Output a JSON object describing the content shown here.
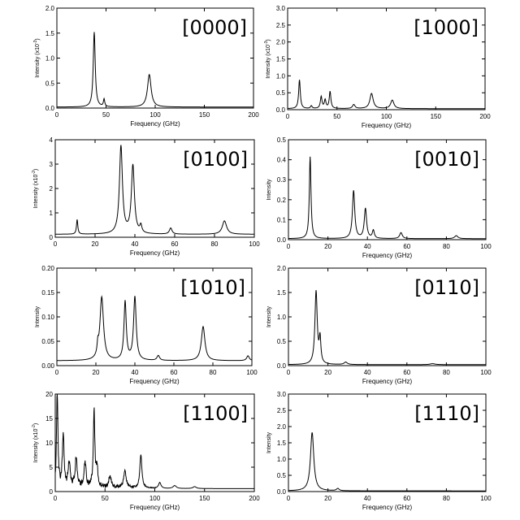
{
  "chart_data": [
    {
      "type": "line",
      "panel_label": "[0000]",
      "xlabel": "Frequency (GHz)",
      "ylabel": "Intensity (x10",
      "ylabel_exp": "-3",
      "ylabel_suffix": ")",
      "xlim": [
        0,
        200
      ],
      "ylim": [
        0,
        2.0
      ],
      "xticks": [
        0,
        50,
        100,
        150,
        200
      ],
      "yticks": [
        "0.0",
        "0.5",
        "1.0",
        "1.5",
        "2.0"
      ],
      "baseline": 0.02,
      "peaks": [
        [
          38,
          1.5,
          1.2
        ],
        [
          48,
          0.15,
          0.8
        ],
        [
          94,
          0.65,
          2.2
        ]
      ],
      "noise": 0
    },
    {
      "type": "line",
      "panel_label": "[1000]",
      "xlabel": "Frequency (GHz)",
      "ylabel": "Intensity (x10",
      "ylabel_exp": "-3",
      "ylabel_suffix": ")",
      "xlim": [
        0,
        200
      ],
      "ylim": [
        0,
        3.0
      ],
      "xticks": [
        0,
        50,
        100,
        150,
        200
      ],
      "yticks": [
        "0.0",
        "0.5",
        "1.0",
        "1.5",
        "2.0",
        "2.5",
        "3.0"
      ],
      "baseline": 0.03,
      "peaks": [
        [
          12,
          0.85,
          1.0
        ],
        [
          24,
          0.08,
          1.0
        ],
        [
          34,
          0.35,
          1.0
        ],
        [
          38,
          0.25,
          1.0
        ],
        [
          43,
          0.5,
          1.0
        ],
        [
          67,
          0.12,
          1.5
        ],
        [
          85,
          0.45,
          2.0
        ],
        [
          106,
          0.25,
          2.0
        ]
      ],
      "noise": 0
    },
    {
      "type": "line",
      "panel_label": "[0100]",
      "xlabel": "Frequency (GHz)",
      "ylabel": "Intensity (x10",
      "ylabel_exp": "-2",
      "ylabel_suffix": ")",
      "xlim": [
        0,
        100
      ],
      "ylim": [
        0,
        4
      ],
      "xticks": [
        0,
        20,
        40,
        60,
        80,
        100
      ],
      "yticks": [
        "0",
        "1",
        "2",
        "3",
        "4"
      ],
      "baseline": 0.12,
      "peaks": [
        [
          11,
          0.6,
          0.4
        ],
        [
          33,
          3.6,
          0.9
        ],
        [
          39,
          2.8,
          0.9
        ],
        [
          43,
          0.3,
          0.6
        ],
        [
          58,
          0.25,
          0.8
        ],
        [
          85,
          0.55,
          1.3
        ]
      ],
      "noise": 0
    },
    {
      "type": "line",
      "panel_label": "[0010]",
      "xlabel": "Frequency (GHz)",
      "ylabel": "Intensity",
      "ylabel_exp": "",
      "ylabel_suffix": "",
      "xlim": [
        0,
        100
      ],
      "ylim": [
        0,
        0.5
      ],
      "xticks": [
        0,
        20,
        40,
        60,
        80,
        100
      ],
      "yticks": [
        "0.0",
        "0.1",
        "0.2",
        "0.3",
        "0.4",
        "0.5"
      ],
      "baseline": 0.005,
      "peaks": [
        [
          11,
          0.41,
          0.5
        ],
        [
          33,
          0.24,
          0.7
        ],
        [
          39,
          0.15,
          0.7
        ],
        [
          43,
          0.04,
          0.6
        ],
        [
          57,
          0.03,
          0.8
        ],
        [
          85,
          0.015,
          1.0
        ]
      ],
      "noise": 0
    },
    {
      "type": "line",
      "panel_label": "[1010]",
      "xlabel": "Frequency (GHz)",
      "ylabel": "Intensity",
      "ylabel_exp": "",
      "ylabel_suffix": "",
      "xlim": [
        0,
        100
      ],
      "ylim": [
        0,
        0.2
      ],
      "xticks": [
        0,
        20,
        40,
        60,
        80,
        100
      ],
      "yticks": [
        "0.00",
        "0.05",
        "0.10",
        "0.15",
        "0.20"
      ],
      "baseline": 0.01,
      "peaks": [
        [
          21,
          0.02,
          0.4
        ],
        [
          23,
          0.13,
          1.1
        ],
        [
          35,
          0.12,
          0.7
        ],
        [
          40,
          0.13,
          0.8
        ],
        [
          52,
          0.01,
          0.8
        ],
        [
          75,
          0.07,
          1.1
        ],
        [
          98,
          0.01,
          0.8
        ]
      ],
      "noise": 0
    },
    {
      "type": "line",
      "panel_label": "[0110]",
      "xlabel": "Frequency (GHz)",
      "ylabel": "Intensity",
      "ylabel_exp": "",
      "ylabel_suffix": "",
      "xlim": [
        0,
        100
      ],
      "ylim": [
        0,
        2.0
      ],
      "xticks": [
        0,
        20,
        40,
        60,
        80,
        100
      ],
      "yticks": [
        "0.0",
        "0.5",
        "1.0",
        "1.5",
        "2.0"
      ],
      "baseline": 0.02,
      "peaks": [
        [
          14,
          1.5,
          0.7
        ],
        [
          16,
          0.5,
          0.5
        ],
        [
          29,
          0.05,
          1.0
        ],
        [
          73,
          0.02,
          1.5
        ]
      ],
      "noise": 0
    },
    {
      "type": "line",
      "panel_label": "[1100]",
      "xlabel": "Frequency (GHz)",
      "ylabel": "Intensity (x10",
      "ylabel_exp": "-2",
      "ylabel_suffix": ")",
      "xlim": [
        0,
        200
      ],
      "ylim": [
        0,
        20
      ],
      "xticks": [
        0,
        50,
        100,
        150,
        200
      ],
      "yticks": [
        "0",
        "5",
        "10",
        "15",
        "20"
      ],
      "baseline": 0.6,
      "peaks": [
        [
          2,
          20,
          0.8
        ],
        [
          8,
          11,
          1.0
        ],
        [
          14,
          5,
          1.2
        ],
        [
          21,
          6,
          1.2
        ],
        [
          30,
          5,
          1.2
        ],
        [
          39,
          16,
          0.9
        ],
        [
          42,
          4,
          1.0
        ],
        [
          55,
          2.5,
          1.5
        ],
        [
          70,
          3.5,
          1.5
        ],
        [
          86,
          7,
          1.2
        ],
        [
          105,
          1.2,
          1.5
        ],
        [
          120,
          0.6,
          2.0
        ],
        [
          140,
          0.4,
          2.0
        ]
      ],
      "noise": 1.6
    },
    {
      "type": "line",
      "panel_label": "[1110]",
      "xlabel": "Frequency (GHz)",
      "ylabel": "Intensity",
      "ylabel_exp": "",
      "ylabel_suffix": "",
      "xlim": [
        0,
        100
      ],
      "ylim": [
        0,
        3.0
      ],
      "xticks": [
        0,
        20,
        40,
        60,
        80,
        100
      ],
      "yticks": [
        "0.0",
        "0.5",
        "1.0",
        "1.5",
        "2.0",
        "2.5",
        "3.0"
      ],
      "baseline": 0.02,
      "peaks": [
        [
          12,
          1.8,
          1.0
        ],
        [
          25,
          0.07,
          0.8
        ]
      ],
      "noise": 0
    }
  ]
}
